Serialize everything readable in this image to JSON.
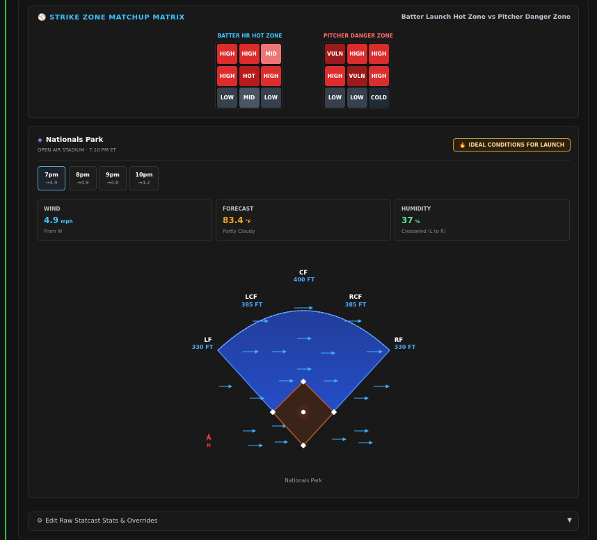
{
  "strike_zone": {
    "title": "STRIKE ZONE MATCHUP MATRIX",
    "title_icon": "baseball-icon",
    "subtitle": "Batter Launch Hot Zone vs Pitcher Danger Zone",
    "batter": {
      "label": "BATTER HR HOT ZONE",
      "label_color": "#3ec4ff",
      "cells": [
        {
          "text": "HIGH",
          "color": "#dc2c2c"
        },
        {
          "text": "HIGH",
          "color": "#dc2c2c"
        },
        {
          "text": "MID",
          "color": "#ef7676"
        },
        {
          "text": "HIGH",
          "color": "#dc2c2c"
        },
        {
          "text": "HOT",
          "color": "#b71c1c"
        },
        {
          "text": "HIGH",
          "color": "#dc2c2c"
        },
        {
          "text": "LOW",
          "color": "#38404d"
        },
        {
          "text": "MID",
          "color": "#4a5563"
        },
        {
          "text": "LOW",
          "color": "#38404d"
        }
      ]
    },
    "pitcher": {
      "label": "PITCHER DANGER ZONE",
      "label_color": "#ff6b6b",
      "cells": [
        {
          "text": "VULN",
          "color": "#9d1a1a"
        },
        {
          "text": "HIGH",
          "color": "#dc2c2c"
        },
        {
          "text": "HIGH",
          "color": "#dc2c2c"
        },
        {
          "text": "HIGH",
          "color": "#dc2c2c"
        },
        {
          "text": "VULN",
          "color": "#9d1a1a"
        },
        {
          "text": "HIGH",
          "color": "#dc2c2c"
        },
        {
          "text": "LOW",
          "color": "#38404d"
        },
        {
          "text": "LOW",
          "color": "#38404d"
        },
        {
          "text": "COLD",
          "color": "#222a36"
        }
      ]
    },
    "divider_icon": "lightning-icon"
  },
  "park": {
    "name": "Nationals Park",
    "subtitle": "OPEN AIR STADIUM · 7:10 PM ET",
    "badge": "IDEAL CONDITIONS FOR LAUNCH",
    "badge_icon": "fire-icon",
    "times": [
      {
        "time": "7pm",
        "wind": "4.9",
        "active": true
      },
      {
        "time": "8pm",
        "wind": "4.9",
        "active": false
      },
      {
        "time": "9pm",
        "wind": "4.6",
        "active": false
      },
      {
        "time": "10pm",
        "wind": "4.2",
        "active": false
      }
    ],
    "wind": {
      "label": "WIND",
      "value": "4.9",
      "unit": "mph",
      "note": "From W",
      "color": "#3ec4ff"
    },
    "forecast": {
      "label": "FORECAST",
      "value": "83.4",
      "unit": "°F",
      "note": "Partly Cloudy",
      "color": "#f5a623"
    },
    "humidity": {
      "label": "HUMIDITY",
      "value": "37",
      "unit": "%",
      "note": "Crosswind (L to R)",
      "color": "#5ee0a0"
    },
    "field": {
      "caption": "Nationals Park",
      "north_label": "N",
      "wind_direction": "left-to-right",
      "fences": [
        {
          "name": "LF",
          "distance": "330 FT"
        },
        {
          "name": "LCF",
          "distance": "385 FT"
        },
        {
          "name": "CF",
          "distance": "400 FT"
        },
        {
          "name": "RCF",
          "distance": "385 FT"
        },
        {
          "name": "RF",
          "distance": "330 FT"
        }
      ]
    }
  },
  "edit": {
    "label": "Edit Raw Statcast Stats & Overrides",
    "icon": "gear-icon",
    "chevron": "chevron-down-icon"
  }
}
